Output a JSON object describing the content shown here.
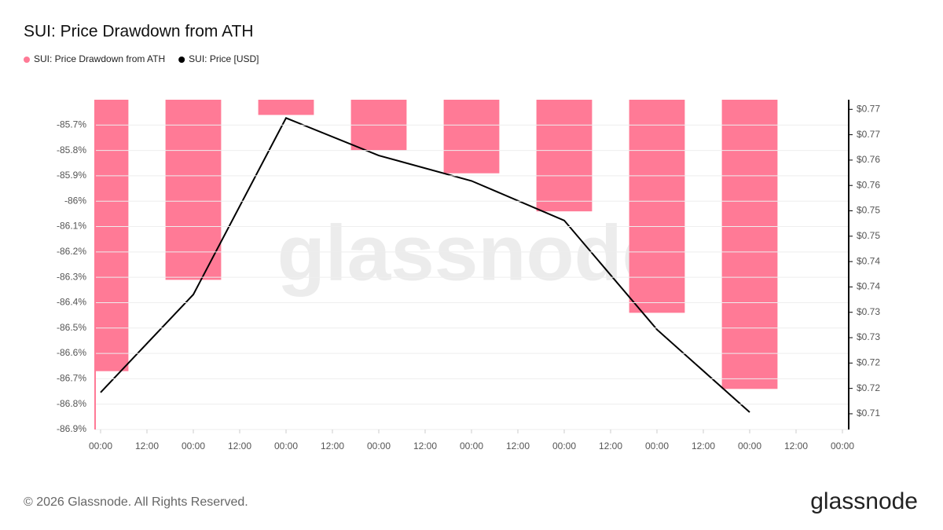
{
  "chart_data": {
    "type": "bar",
    "title": "SUI: Price Drawdown from ATH",
    "watermark": "glassnode",
    "footer": "© 2026 Glassnode. All Rights Reserved.",
    "logo": "glassnode",
    "x": [
      0,
      24,
      48,
      72,
      96,
      120,
      144,
      168
    ],
    "xlim": [
      0,
      192
    ],
    "xticks": [
      {
        "value": 0,
        "label": "00:00"
      },
      {
        "value": 12,
        "label": "12:00"
      },
      {
        "value": 24,
        "label": "00:00"
      },
      {
        "value": 36,
        "label": "12:00"
      },
      {
        "value": 48,
        "label": "00:00"
      },
      {
        "value": 60,
        "label": "12:00"
      },
      {
        "value": 72,
        "label": "00:00"
      },
      {
        "value": 84,
        "label": "12:00"
      },
      {
        "value": 96,
        "label": "00:00"
      },
      {
        "value": 108,
        "label": "12:00"
      },
      {
        "value": 120,
        "label": "00:00"
      },
      {
        "value": 132,
        "label": "12:00"
      },
      {
        "value": 144,
        "label": "00:00"
      },
      {
        "value": 156,
        "label": "12:00"
      },
      {
        "value": 168,
        "label": "00:00"
      },
      {
        "value": 180,
        "label": "12:00"
      },
      {
        "value": 192,
        "label": "00:00"
      }
    ],
    "ylim": [
      -86.9,
      -85.6
    ],
    "yticks": [
      {
        "value": -85.7,
        "label": "-85.7%"
      },
      {
        "value": -85.8,
        "label": "-85.8%"
      },
      {
        "value": -85.9,
        "label": "-85.9%"
      },
      {
        "value": -86,
        "label": "-86%"
      },
      {
        "value": -86.1,
        "label": "-86.1%"
      },
      {
        "value": -86.2,
        "label": "-86.2%"
      },
      {
        "value": -86.3,
        "label": "-86.3%"
      },
      {
        "value": -86.4,
        "label": "-86.4%"
      },
      {
        "value": -86.5,
        "label": "-86.5%"
      },
      {
        "value": -86.6,
        "label": "-86.6%"
      },
      {
        "value": -86.7,
        "label": "-86.7%"
      },
      {
        "value": -86.8,
        "label": "-86.8%"
      },
      {
        "value": -86.9,
        "label": "-86.9%"
      }
    ],
    "y2lim": [
      0.7069,
      0.7719
    ],
    "y2ticks": [
      {
        "value": 0.77,
        "label": "$0.77"
      },
      {
        "value": 0.765,
        "label": "$0.77"
      },
      {
        "value": 0.76,
        "label": "$0.76"
      },
      {
        "value": 0.755,
        "label": "$0.76"
      },
      {
        "value": 0.75,
        "label": "$0.75"
      },
      {
        "value": 0.745,
        "label": "$0.75"
      },
      {
        "value": 0.74,
        "label": "$0.74"
      },
      {
        "value": 0.735,
        "label": "$0.74"
      },
      {
        "value": 0.73,
        "label": "$0.73"
      },
      {
        "value": 0.725,
        "label": "$0.73"
      },
      {
        "value": 0.72,
        "label": "$0.72"
      },
      {
        "value": 0.715,
        "label": "$0.72"
      },
      {
        "value": 0.71,
        "label": "$0.71"
      }
    ],
    "grid": true,
    "series": [
      {
        "name": "SUI: Price Drawdown from ATH",
        "type": "bar",
        "color": "#ff7a96",
        "values": [
          -86.67,
          -86.31,
          -85.66,
          -85.8,
          -85.89,
          -86.04,
          -86.44,
          -86.74
        ]
      },
      {
        "name": "SUI: Price [USD]",
        "type": "line",
        "axis": "y2",
        "color": "#000000",
        "values": [
          0.7142,
          0.7335,
          0.7683,
          0.7609,
          0.7559,
          0.7481,
          0.7266,
          0.7103
        ]
      }
    ]
  }
}
